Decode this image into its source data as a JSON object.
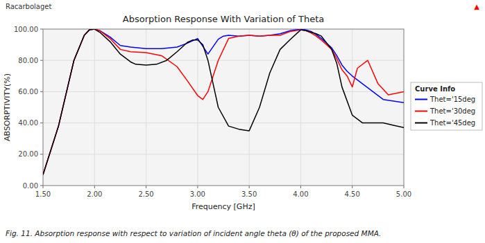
{
  "chart_data": {
    "type": "line",
    "title": "Absorption Response With Variation of Theta",
    "x_label": "Frequency [GHz]",
    "y_label": "ABSORPTIVITY(%)",
    "caption": "Fig. 11. Absorption response with respect to variation of incident angle theta (θ) of the proposed MMA.",
    "legend_title": "Curve Info",
    "annotations": [
      {
        "text": "Racarbolaget"
      },
      {
        "text": "▲",
        "color": "red"
      }
    ],
    "xlim": [
      1.5,
      5.0
    ],
    "ylim": [
      0.0,
      100.0
    ],
    "xticks": [
      {
        "value": 1.5,
        "label": "1.50"
      },
      {
        "value": 2.0,
        "label": "2.00"
      },
      {
        "value": 2.5,
        "label": "2.50"
      },
      {
        "value": 3.0,
        "label": "3.00"
      },
      {
        "value": 3.5,
        "label": "3.50"
      },
      {
        "value": 4.0,
        "label": "4.00"
      },
      {
        "value": 4.5,
        "label": "4.50"
      },
      {
        "value": 5.0,
        "label": "5.00"
      }
    ],
    "yticks": [
      {
        "value": 0,
        "label": "0.00"
      },
      {
        "value": 20,
        "label": "20.00"
      },
      {
        "value": 40,
        "label": "40.00"
      },
      {
        "value": 60,
        "label": "60.00"
      },
      {
        "value": 80,
        "label": "80.00"
      },
      {
        "value": 100,
        "label": "100.00"
      }
    ],
    "grid": true,
    "legend": "right",
    "series": [
      {
        "name": "Thet='15deg",
        "color": "blue",
        "x": [
          1.5,
          1.65,
          1.8,
          1.9,
          1.95,
          2.0,
          2.05,
          2.15,
          2.25,
          2.35,
          2.5,
          2.65,
          2.8,
          2.9,
          3.0,
          3.1,
          3.2,
          3.25,
          3.3,
          3.4,
          3.5,
          3.6,
          3.7,
          3.8,
          3.9,
          4.0,
          4.05,
          4.1,
          4.15,
          4.2,
          4.3,
          4.35,
          4.4,
          4.45,
          4.5,
          4.6,
          4.7,
          4.8,
          5.0
        ],
        "values": [
          7.0,
          38.0,
          80.0,
          96.0,
          99.5,
          100.0,
          99.0,
          95.0,
          89.5,
          88.5,
          87.5,
          87.5,
          88.5,
          91.0,
          94.0,
          84.0,
          93.5,
          95.5,
          96.0,
          95.5,
          96.0,
          95.5,
          96.0,
          97.0,
          99.0,
          100.0,
          99.5,
          98.5,
          96.5,
          94.0,
          88.0,
          83.0,
          77.0,
          73.0,
          70.0,
          65.0,
          60.0,
          55.0,
          53.0
        ]
      },
      {
        "name": "Thet='30deg",
        "color": "red",
        "x": [
          1.5,
          1.65,
          1.8,
          1.9,
          1.95,
          2.0,
          2.05,
          2.15,
          2.25,
          2.35,
          2.5,
          2.65,
          2.8,
          2.9,
          3.0,
          3.05,
          3.1,
          3.2,
          3.3,
          3.4,
          3.5,
          3.6,
          3.7,
          3.8,
          3.9,
          4.0,
          4.05,
          4.1,
          4.15,
          4.2,
          4.3,
          4.35,
          4.4,
          4.45,
          4.5,
          4.55,
          4.65,
          4.75,
          4.85,
          5.0
        ],
        "values": [
          7.0,
          38.0,
          80.0,
          96.0,
          99.5,
          100.0,
          99.0,
          94.0,
          87.0,
          85.5,
          85.0,
          83.0,
          76.0,
          67.0,
          57.5,
          55.0,
          60.0,
          80.0,
          94.0,
          95.5,
          96.0,
          95.5,
          96.0,
          96.0,
          98.5,
          99.5,
          99.0,
          97.5,
          95.5,
          93.0,
          87.0,
          81.0,
          74.0,
          70.0,
          63.0,
          75.0,
          80.0,
          65.0,
          58.0,
          60.0
        ]
      },
      {
        "name": "Thet='45deg",
        "color": "black",
        "x": [
          1.5,
          1.65,
          1.8,
          1.9,
          1.95,
          2.0,
          2.05,
          2.15,
          2.25,
          2.35,
          2.4,
          2.5,
          2.6,
          2.7,
          2.8,
          2.9,
          2.95,
          3.0,
          3.05,
          3.1,
          3.15,
          3.2,
          3.3,
          3.4,
          3.5,
          3.6,
          3.7,
          3.8,
          3.9,
          4.0,
          4.05,
          4.1,
          4.15,
          4.2,
          4.3,
          4.35,
          4.4,
          4.5,
          4.6,
          4.7,
          4.8,
          4.9,
          5.0
        ],
        "values": [
          7.0,
          38.0,
          80.0,
          96.0,
          99.5,
          100.0,
          98.0,
          92.0,
          84.0,
          79.0,
          77.5,
          77.0,
          77.5,
          80.0,
          85.5,
          91.5,
          93.0,
          93.0,
          90.0,
          80.0,
          65.0,
          50.0,
          38.0,
          36.0,
          35.0,
          50.0,
          72.0,
          87.0,
          93.5,
          99.5,
          99.0,
          98.0,
          97.0,
          95.5,
          87.0,
          78.0,
          63.0,
          45.0,
          40.0,
          40.0,
          40.0,
          38.5,
          37.0
        ]
      }
    ]
  }
}
